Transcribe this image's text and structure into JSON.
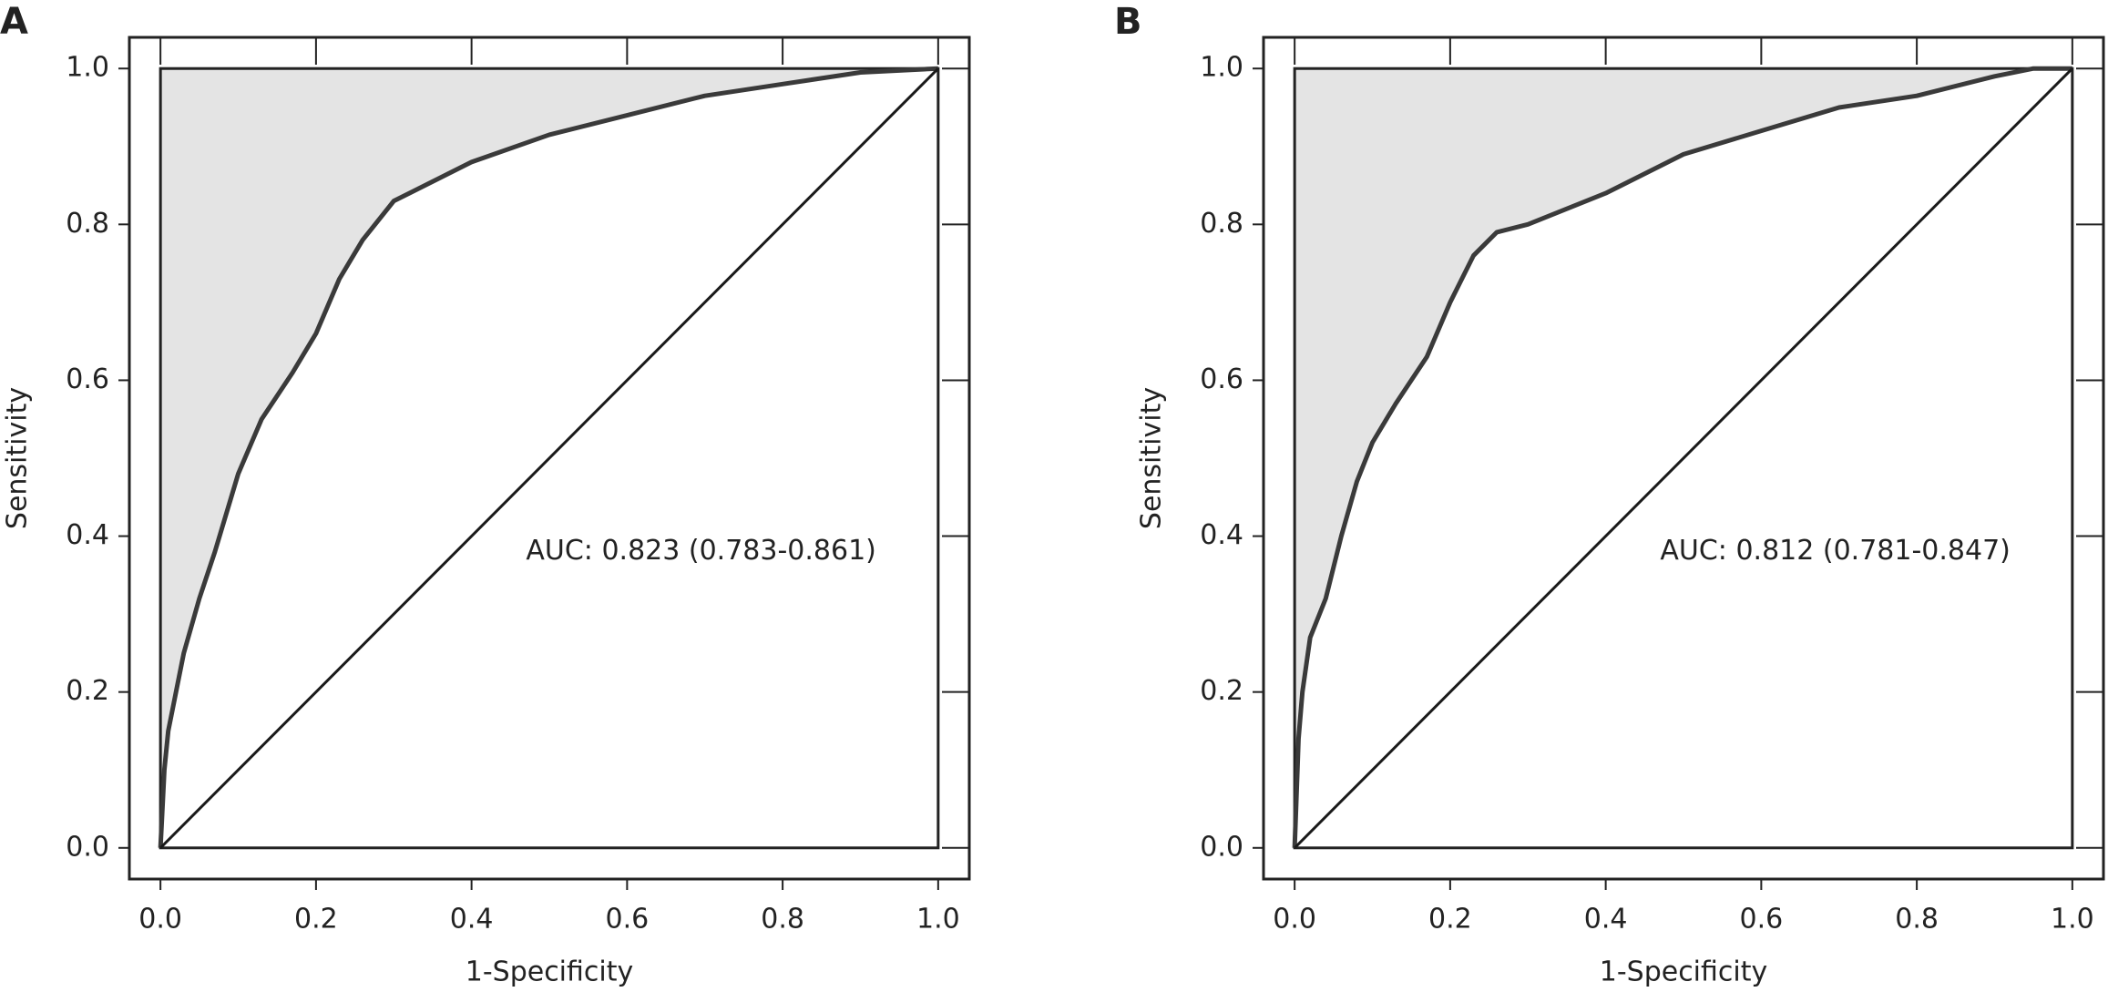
{
  "chart_data": [
    {
      "type": "line",
      "panel": "A",
      "xlabel": "1-Specificity",
      "ylabel": "Sensitivity",
      "annotation": "AUC: 0.823 (0.783-0.861)",
      "xlim": [
        -0.04,
        1.04
      ],
      "ylim": [
        -0.04,
        1.04
      ],
      "xticks": [
        {
          "value": 0,
          "label": "0.0"
        },
        0.2,
        0.4,
        0.6,
        0.8,
        {
          "value": 1,
          "label": "1.0"
        }
      ],
      "yticks": [
        {
          "value": 0,
          "label": "0.0"
        },
        0.2,
        0.4,
        0.6,
        0.8,
        {
          "value": 1,
          "label": "1.0"
        }
      ],
      "series": [
        {
          "color": "#3a3a3a",
          "fill": "#e4e4e4",
          "x": [
            0,
            0.005,
            0.01,
            0.02,
            0.03,
            0.05,
            0.07,
            0.1,
            0.13,
            0.17,
            0.2,
            0.23,
            0.26,
            0.3,
            0.32,
            0.36,
            0.4,
            0.5,
            0.6,
            0.7,
            0.8,
            0.9,
            1
          ],
          "values": [
            0,
            0.1,
            0.15,
            0.2,
            0.25,
            0.32,
            0.38,
            0.48,
            0.55,
            0.61,
            0.66,
            0.73,
            0.78,
            0.83,
            0.84,
            0.86,
            0.88,
            0.915,
            0.94,
            0.965,
            0.98,
            0.995,
            1
          ]
        },
        {
          "color": "#1a1a1a",
          "x": [
            0,
            1
          ],
          "values": [
            0,
            1
          ]
        }
      ]
    },
    {
      "type": "line",
      "panel": "B",
      "xlabel": "1-Specificity",
      "ylabel": "Sensitivity",
      "annotation": "AUC: 0.812 (0.781-0.847)",
      "xlim": [
        -0.04,
        1.04
      ],
      "ylim": [
        -0.04,
        1.04
      ],
      "xticks": [
        {
          "value": 0,
          "label": "0.0"
        },
        0.2,
        0.4,
        0.6,
        0.8,
        {
          "value": 1,
          "label": "1.0"
        }
      ],
      "yticks": [
        {
          "value": 0,
          "label": "0.0"
        },
        0.2,
        0.4,
        0.6,
        0.8,
        {
          "value": 1,
          "label": "1.0"
        }
      ],
      "series": [
        {
          "color": "#3a3a3a",
          "fill": "#e4e4e4",
          "x": [
            0,
            0.005,
            0.01,
            0.02,
            0.04,
            0.06,
            0.08,
            0.1,
            0.13,
            0.17,
            0.2,
            0.23,
            0.26,
            0.3,
            0.4,
            0.5,
            0.6,
            0.7,
            0.8,
            0.9,
            0.95,
            1
          ],
          "values": [
            0,
            0.14,
            0.2,
            0.27,
            0.32,
            0.4,
            0.47,
            0.52,
            0.57,
            0.63,
            0.7,
            0.76,
            0.79,
            0.8,
            0.84,
            0.89,
            0.92,
            0.95,
            0.965,
            0.99,
            1,
            1
          ]
        },
        {
          "color": "#1a1a1a",
          "x": [
            0,
            1
          ],
          "values": [
            0,
            1
          ]
        }
      ]
    }
  ]
}
